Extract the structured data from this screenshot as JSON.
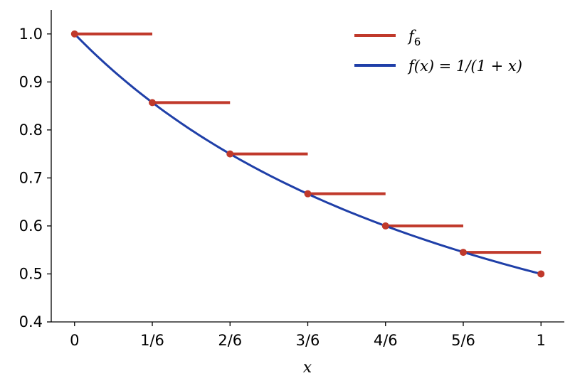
{
  "chart_data": {
    "type": "line",
    "title": "",
    "xlabel": "x",
    "ylabel": "",
    "xlim": [
      -0.05,
      1.05
    ],
    "ylim": [
      0.4,
      1.05
    ],
    "grid": false,
    "legend_position": "top-right",
    "x_ticks": [
      0,
      0.16667,
      0.33333,
      0.5,
      0.66667,
      0.83333,
      1
    ],
    "x_tick_labels": [
      "0",
      "1/6",
      "2/6",
      "3/6",
      "4/6",
      "5/6",
      "1"
    ],
    "y_ticks": [
      0.4,
      0.5,
      0.6,
      0.7,
      0.8,
      0.9,
      1.0
    ],
    "y_tick_labels": [
      "0.4",
      "0.5",
      "0.6",
      "0.7",
      "0.8",
      "0.9",
      "1.0"
    ],
    "series": [
      {
        "name": "f_6",
        "legend": {
          "main": "f",
          "sub": "6"
        },
        "kind": "step",
        "color": "#c0392b",
        "steps": [
          {
            "x0": 0,
            "x1": 0.16667,
            "y": 1.0
          },
          {
            "x0": 0.16667,
            "x1": 0.33333,
            "y": 0.857
          },
          {
            "x0": 0.33333,
            "x1": 0.5,
            "y": 0.75
          },
          {
            "x0": 0.5,
            "x1": 0.66667,
            "y": 0.667
          },
          {
            "x0": 0.66667,
            "x1": 0.83333,
            "y": 0.6
          },
          {
            "x0": 0.83333,
            "x1": 1.0,
            "y": 0.545
          }
        ],
        "points": [
          {
            "x": 0,
            "y": 1.0
          },
          {
            "x": 0.16667,
            "y": 0.857
          },
          {
            "x": 0.33333,
            "y": 0.75
          },
          {
            "x": 0.5,
            "y": 0.667
          },
          {
            "x": 0.66667,
            "y": 0.6
          },
          {
            "x": 0.83333,
            "y": 0.545
          },
          {
            "x": 1.0,
            "y": 0.5
          }
        ]
      },
      {
        "name": "f(x) = 1/(1 + x)",
        "legend": {
          "fx": "f",
          "paren": "(x) = 1/(1 + x)"
        },
        "kind": "function",
        "formula": "1/(1+x)",
        "color": "#1f3fa8",
        "x_range": [
          0,
          1
        ]
      }
    ]
  }
}
